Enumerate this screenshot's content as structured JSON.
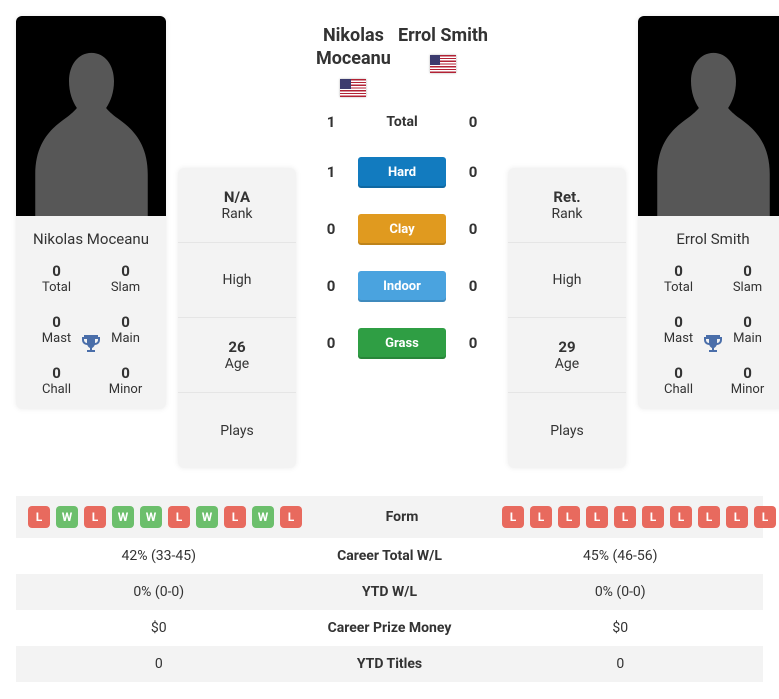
{
  "labels": {
    "rank": "Rank",
    "high": "High",
    "age": "Age",
    "plays": "Plays",
    "total": "Total",
    "hard": "Hard",
    "clay": "Clay",
    "indoor": "Indoor",
    "grass": "Grass",
    "form": "Form",
    "careerWL": "Career Total W/L",
    "ytdWL": "YTD W/L",
    "prize": "Career Prize Money",
    "ytdTitles": "YTD Titles",
    "titles_total": "Total",
    "titles_slam": "Slam",
    "titles_mast": "Mast",
    "titles_main": "Main",
    "titles_chall": "Chall",
    "titles_minor": "Minor"
  },
  "surfaces": {
    "hard_color": "#127bbf",
    "clay_color": "#e09a1f",
    "indoor_color": "#4aa3df",
    "grass_color": "#2f9e44"
  },
  "form_colors": {
    "W": "#6cbf6c",
    "L": "#e86a5e"
  },
  "player1": {
    "name": "Nikolas Moceanu",
    "name_line1": "Nikolas",
    "name_line2": "Moceanu",
    "country": "USA",
    "rank": "N/A",
    "high": "",
    "age": "26",
    "plays": "",
    "titles": {
      "total": "0",
      "slam": "0",
      "mast": "0",
      "main": "0",
      "chall": "0",
      "minor": "0"
    },
    "form": [
      "L",
      "W",
      "L",
      "W",
      "W",
      "L",
      "W",
      "L",
      "W",
      "L"
    ],
    "careerWL": "42% (33-45)",
    "ytdWL": "0% (0-0)",
    "prize": "$0",
    "ytdTitles": "0"
  },
  "player2": {
    "name": "Errol Smith",
    "name_line1": "Errol Smith",
    "name_line2": "",
    "country": "USA",
    "rank": "Ret.",
    "high": "",
    "age": "29",
    "plays": "",
    "titles": {
      "total": "0",
      "slam": "0",
      "mast": "0",
      "main": "0",
      "chall": "0",
      "minor": "0"
    },
    "form": [
      "L",
      "L",
      "L",
      "L",
      "L",
      "L",
      "L",
      "L",
      "L",
      "L"
    ],
    "careerWL": "45% (46-56)",
    "ytdWL": "0% (0-0)",
    "prize": "$0",
    "ytdTitles": "0"
  },
  "h2h": {
    "total": {
      "p1": "1",
      "p2": "0"
    },
    "hard": {
      "p1": "1",
      "p2": "0"
    },
    "clay": {
      "p1": "0",
      "p2": "0"
    },
    "indoor": {
      "p1": "0",
      "p2": "0"
    },
    "grass": {
      "p1": "0",
      "p2": "0"
    }
  }
}
